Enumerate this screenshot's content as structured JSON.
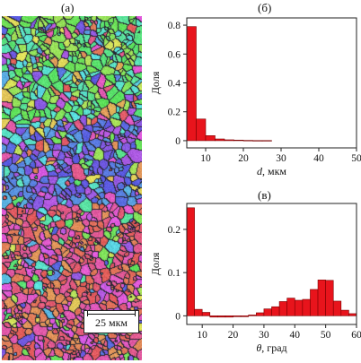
{
  "figure": {
    "panel_a_label": "(а)",
    "panel_b_label": "(б)",
    "panel_c_label": "(в)",
    "scale_bar_label": "25 мкм"
  },
  "chart_data": [
    {
      "type": "bar",
      "panel": "(б)",
      "xlabel": "d, мкм",
      "ylabel": "Доля",
      "xlim": [
        5,
        50
      ],
      "ylim": [
        -0.05,
        0.85
      ],
      "xticks": [
        10,
        20,
        30,
        40,
        50
      ],
      "yticks": [
        0,
        0.2,
        0.4,
        0.6,
        0.8
      ],
      "bar_color": "#e8141c",
      "bin_width": 2.5,
      "bin_starts": [
        5,
        7.5,
        10,
        12.5,
        15,
        17.5,
        20,
        22.5,
        25
      ],
      "values": [
        0.79,
        0.15,
        0.035,
        0.012,
        0.006,
        0.004,
        0.002,
        0.001,
        0.001
      ]
    },
    {
      "type": "bar",
      "panel": "(в)",
      "xlabel": "θ, град",
      "ylabel": "Доля",
      "xlim": [
        5,
        60
      ],
      "ylim": [
        -0.02,
        0.26
      ],
      "xticks": [
        10,
        20,
        30,
        40,
        50,
        60
      ],
      "yticks": [
        0,
        0.1,
        0.2
      ],
      "bar_color": "#e8141c",
      "bin_width": 2.5,
      "bin_starts": [
        5,
        7.5,
        10,
        12.5,
        15,
        17.5,
        20,
        22.5,
        25,
        27.5,
        30,
        32.5,
        35,
        37.5,
        40,
        42.5,
        45,
        47.5,
        50,
        52.5,
        55,
        57.5
      ],
      "values": [
        0.25,
        0.015,
        0.008,
        -0.003,
        -0.003,
        -0.003,
        -0.002,
        -0.002,
        0.002,
        0.007,
        0.016,
        0.021,
        0.033,
        0.041,
        0.036,
        0.038,
        0.061,
        0.083,
        0.082,
        0.034,
        0.013,
        0.005
      ]
    }
  ]
}
